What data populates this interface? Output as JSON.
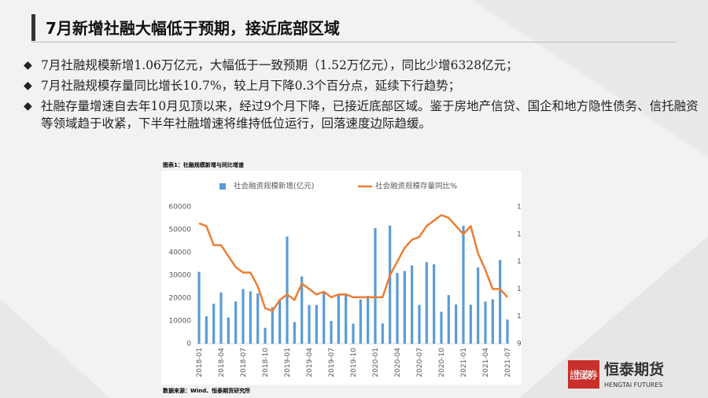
{
  "slide": {
    "title": "7月新增社融大幅低于预期，接近底部区域",
    "bullets": [
      "7月社融规模新增1.06万亿元，大幅低于一致预期（1.52万亿元），同比少增6328亿元；",
      "7月社融规模存量同比增长10.7%，较上月下降0.3个百分点，延续下行趋势；",
      "社融存量增速自去年10月见顶以来，经过9个月下降，已接近底部区域。鉴于房地产信贷、国企和地方隐性债务、信托融资等领域趋于收紧，下半年社融增速将维持低位运行，回落速度边际趋缓。"
    ],
    "logo_cn": "恒泰期货",
    "logo_en": "HENGTAI FUTURES",
    "seal": "證恒泰券"
  },
  "chart_data": {
    "type": "bar_line",
    "caption": "图表1：社融规模新增与同比增速",
    "source": "数据来源：Wind、恒泰期货研究所",
    "categories": [
      "2018-01",
      null,
      null,
      "2018-04",
      null,
      null,
      "2018-07",
      null,
      null,
      "2018-10",
      null,
      null,
      "2019-01",
      null,
      null,
      "2019-04",
      null,
      null,
      "2019-07",
      null,
      null,
      "2019-10",
      null,
      null,
      "2020-01",
      null,
      null,
      "2020-04",
      null,
      null,
      "2020-07",
      null,
      null,
      "2020-10",
      null,
      null,
      "2021-01",
      null,
      null,
      "2021-04",
      null,
      null,
      "2021-07"
    ],
    "series": [
      {
        "name": "社会融资规模新增(亿元)",
        "color": "#5b9bd5",
        "axis": "y",
        "values": [
          31500,
          12000,
          17500,
          22500,
          11500,
          18500,
          24000,
          23000,
          22000,
          7000,
          16000,
          19000,
          47000,
          9500,
          29500,
          17000,
          17000,
          23000,
          10000,
          21800,
          22000,
          8800,
          19400,
          21000,
          50700,
          8900,
          51800,
          31000,
          31900,
          34300,
          17000,
          35800,
          34800,
          14000,
          21300,
          17200,
          51700,
          17100,
          33400,
          18500,
          19500,
          36700,
          10600
        ]
      },
      {
        "name": "社会融资规模存量同比%",
        "color": "#ed7d31",
        "axis": "y2",
        "values": [
          13.4,
          13.3,
          12.6,
          12.6,
          12.2,
          11.8,
          11.6,
          11.6,
          11.1,
          10.3,
          10.2,
          10.6,
          10.8,
          10.6,
          11.2,
          11.0,
          10.8,
          10.9,
          10.7,
          10.8,
          10.8,
          10.7,
          10.7,
          10.7,
          10.7,
          10.7,
          11.5,
          12.0,
          12.5,
          12.8,
          12.9,
          13.3,
          13.5,
          13.7,
          13.6,
          13.3,
          13.0,
          13.3,
          12.3,
          11.7,
          11.0,
          11.0,
          10.7
        ]
      }
    ],
    "ylim": [
      0,
      60000
    ],
    "yticks": [
      0,
      10000,
      20000,
      30000,
      40000,
      50000,
      60000
    ],
    "y2lim": [
      9,
      14
    ],
    "y2ticks": [
      9,
      10,
      11,
      12,
      13,
      14
    ]
  }
}
